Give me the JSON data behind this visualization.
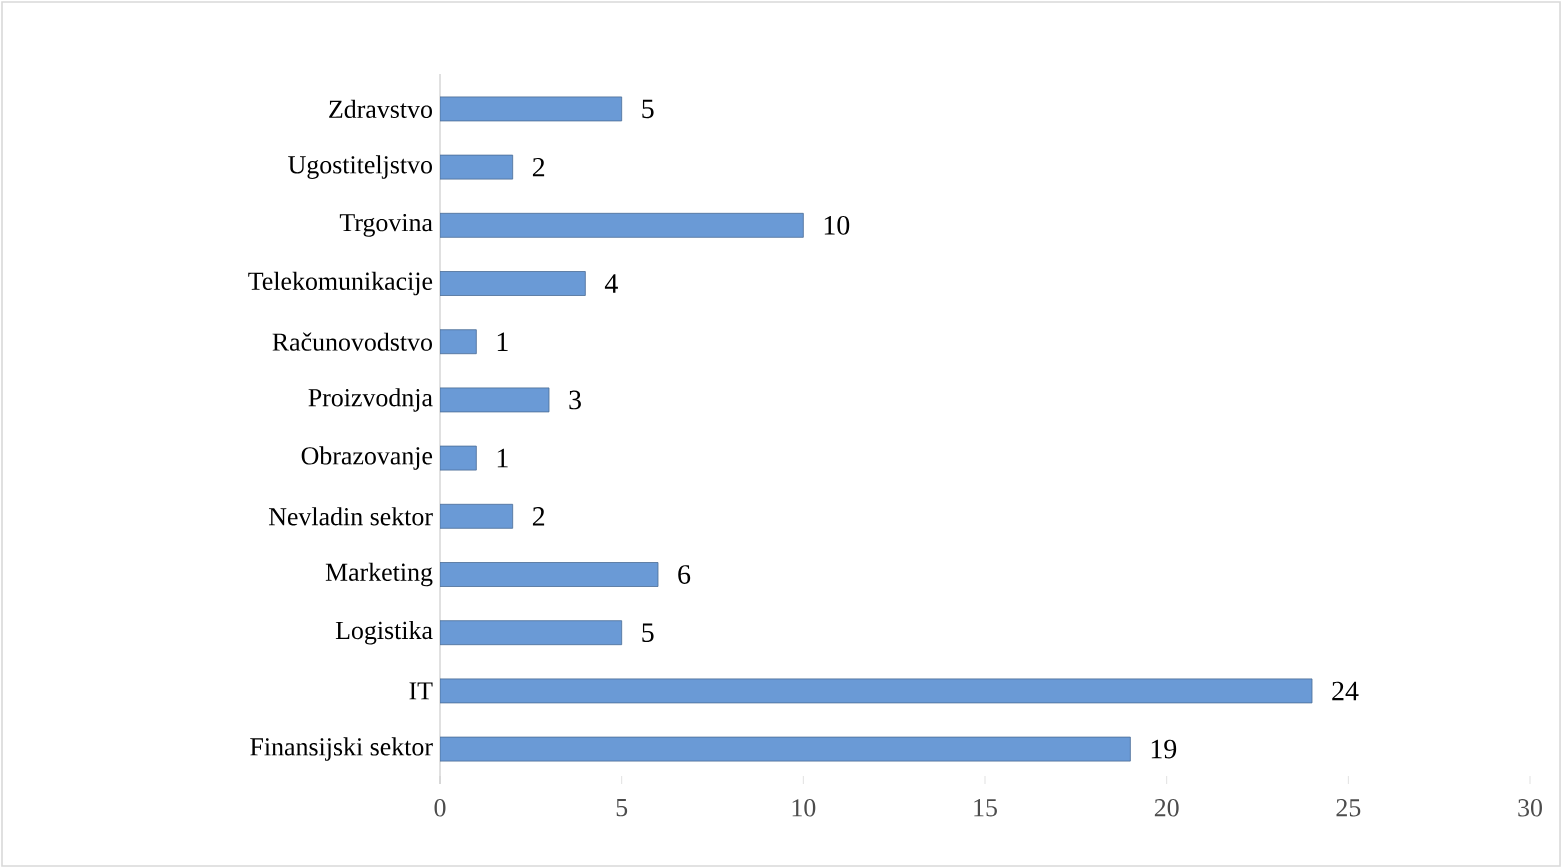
{
  "chart_data": {
    "type": "bar",
    "orientation": "horizontal",
    "categories": [
      "Zdravstvo",
      "Ugostiteljstvo",
      "Trgovina",
      "Telekomunikacije",
      "Računovodstvo",
      "Proizvodnja",
      "Obrazovanje",
      "Nevladin sektor",
      "Marketing",
      "Logistika",
      "IT",
      "Finansijski sektor"
    ],
    "values": [
      5,
      2,
      10,
      4,
      1,
      3,
      1,
      2,
      6,
      5,
      24,
      19
    ],
    "color": "#6a9ad6",
    "xlim": [
      0,
      30
    ],
    "xticks": [
      0,
      5,
      10,
      15,
      20,
      25,
      30
    ],
    "data_labels": true
  }
}
